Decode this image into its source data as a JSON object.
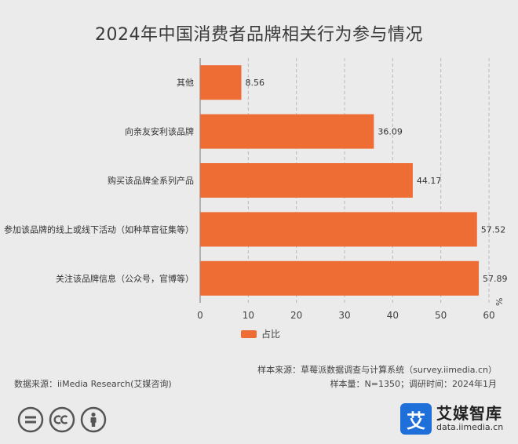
{
  "chart_data": {
    "type": "bar",
    "orientation": "horizontal",
    "title": "2024年中国消费者品牌相关行为参与情况",
    "categories": [
      "其他",
      "向亲友安利该品牌",
      "购买该品牌全系列产品",
      "参加该品牌的线上或线下活动（如种草官征集等）",
      "关注该品牌信息（公众号，官博等）"
    ],
    "series": [
      {
        "name": "占比",
        "values": [
          8.56,
          36.09,
          44.17,
          57.52,
          57.89
        ],
        "labels": [
          "8.56",
          "36.09",
          "44.17",
          "57.52",
          "57.89"
        ]
      }
    ],
    "xlim": [
      0,
      60
    ],
    "xticks": [
      "0",
      "10",
      "20",
      "30",
      "40",
      "50",
      "60"
    ],
    "unit": "%",
    "bar_color": "#ed6d35",
    "grid": true,
    "legend_position": "bottom"
  },
  "footer": {
    "data_source": "数据来源：iiMedia Research(艾媒咨询)",
    "sample_source": "样本来源：草莓派数据调查与计算系统（survey.iimedia.cn）",
    "sample_size": "样本量：N=1350；调研时间：2024年1月"
  },
  "brand": {
    "logo_char": "艾",
    "name": "艾媒智库",
    "url": "data.iimedia.cn"
  },
  "icons": [
    "equals-icon",
    "cc-icon",
    "person-icon"
  ]
}
